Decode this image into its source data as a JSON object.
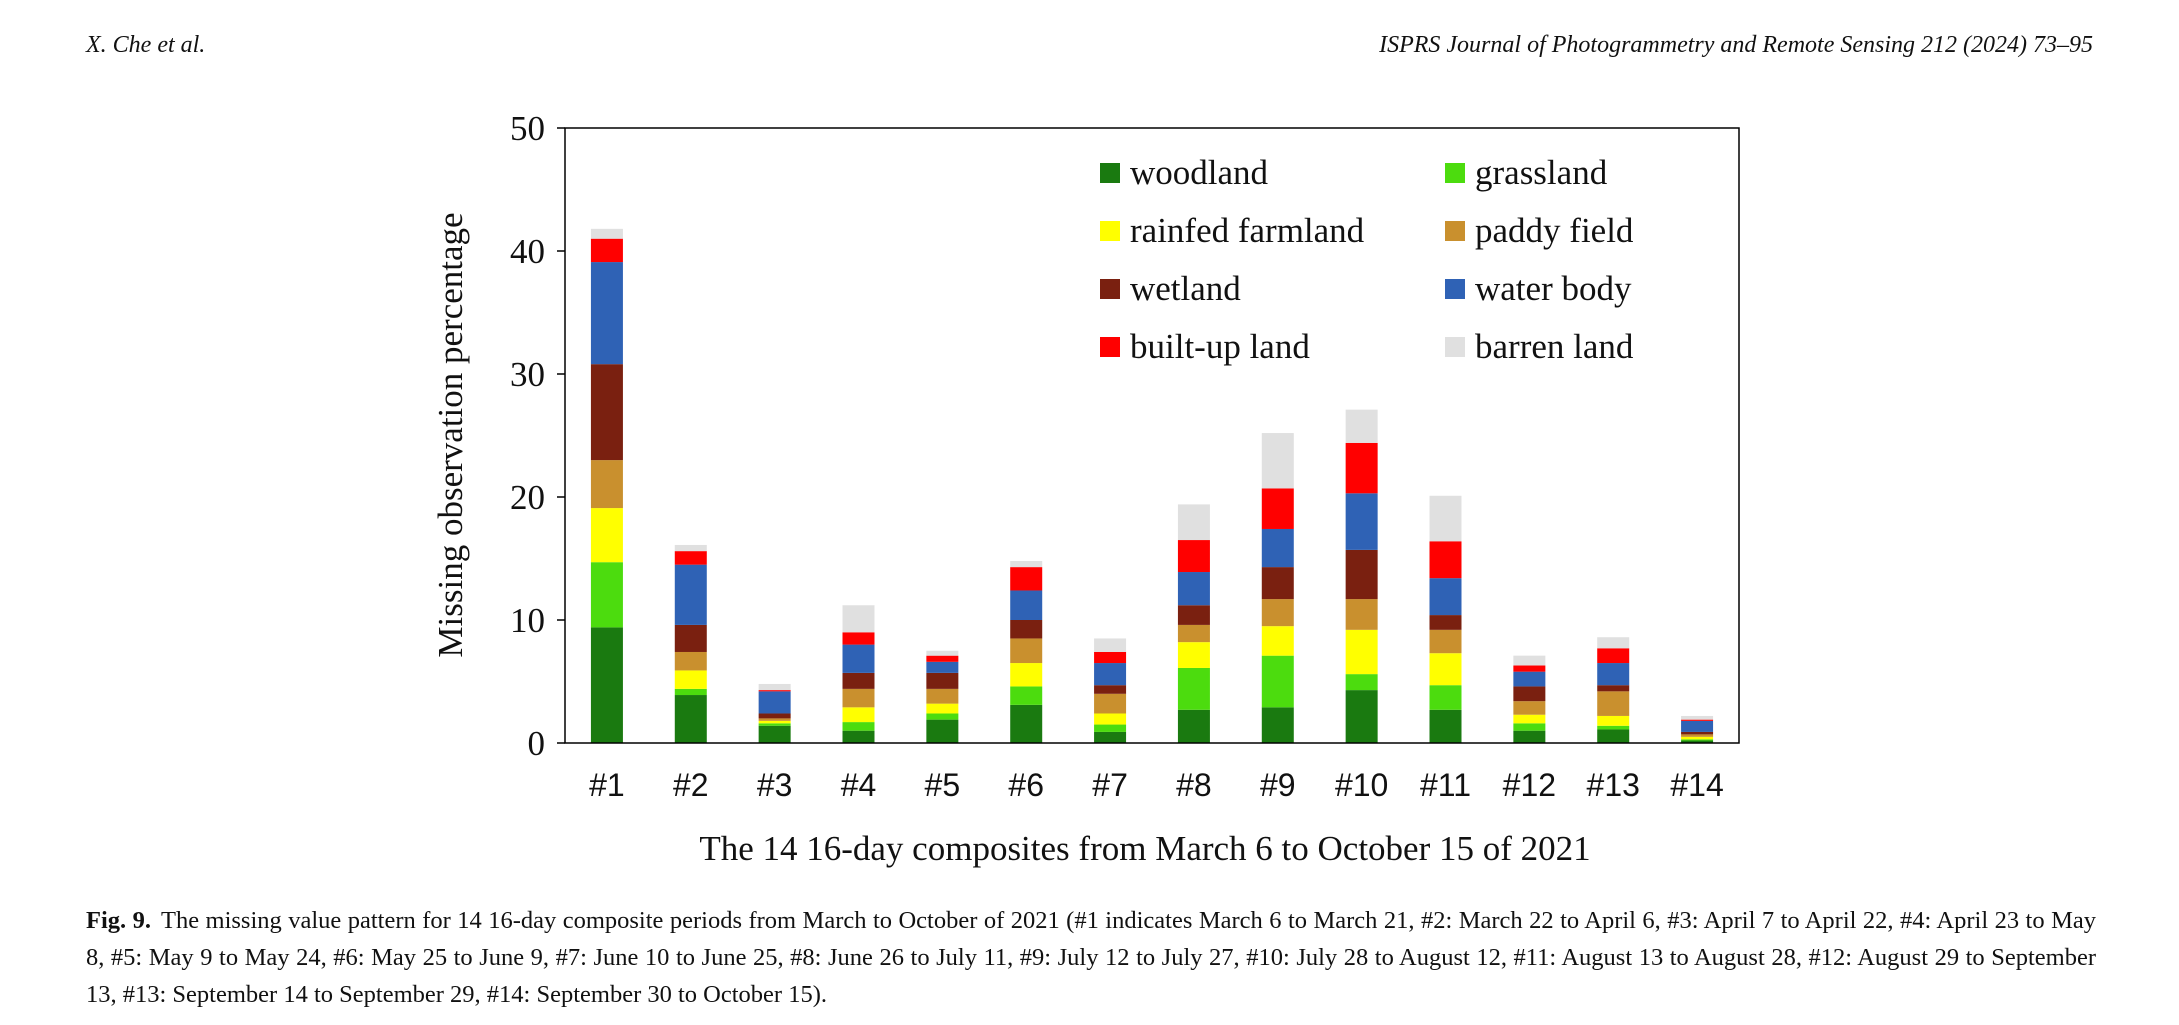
{
  "header": {
    "left": "X. Che et al.",
    "right": "ISPRS Journal of Photogrammetry and Remote Sensing 212 (2024) 73–95"
  },
  "caption": {
    "label": "Fig. 9.",
    "text": "The missing value pattern for 14 16-day composite periods from March to October of 2021 (#1 indicates March 6 to March 21, #2: March 22 to April 6, #3: April 7 to April 22, #4: April 23 to May 8, #5: May 9 to May 24, #6: May 25 to June 9, #7: June 10 to June 25, #8: June 26 to July 11, #9: July 12 to July 27, #10: July 28 to August 12, #11: August 13 to August 28, #12: August 29 to September 13, #13: September 14 to September 29, #14: September 30 to October 15)."
  },
  "chart_data": {
    "type": "bar",
    "stacked": true,
    "title": "",
    "xlabel": "The 14 16-day composites from March 6 to October 15 of 2021",
    "ylabel": "Missing observation percentage",
    "ylim": [
      0,
      50
    ],
    "yticks": [
      0,
      10,
      20,
      30,
      40,
      50
    ],
    "grid": false,
    "legend_position": "top-right",
    "categories": [
      "#1",
      "#2",
      "#3",
      "#4",
      "#5",
      "#6",
      "#7",
      "#8",
      "#9",
      "#10",
      "#11",
      "#12",
      "#13",
      "#14"
    ],
    "series": [
      {
        "name": "woodland",
        "color": "#1a7a10",
        "values": [
          9.4,
          3.9,
          1.4,
          1.0,
          1.9,
          3.1,
          0.9,
          2.7,
          2.9,
          4.3,
          2.7,
          1.0,
          1.1,
          0.2
        ]
      },
      {
        "name": "grassland",
        "color": "#4cdc0e",
        "values": [
          5.3,
          0.5,
          0.2,
          0.7,
          0.5,
          1.5,
          0.6,
          3.4,
          4.2,
          1.3,
          2.0,
          0.6,
          0.3,
          0.1
        ]
      },
      {
        "name": "rainfed farmland",
        "color": "#ffff00",
        "values": [
          4.4,
          1.5,
          0.2,
          1.2,
          0.8,
          1.9,
          0.9,
          2.1,
          2.4,
          3.6,
          2.6,
          0.7,
          0.8,
          0.2
        ]
      },
      {
        "name": "paddy field",
        "color": "#c9902e",
        "values": [
          3.9,
          1.5,
          0.2,
          1.5,
          1.2,
          2.0,
          1.6,
          1.4,
          2.2,
          2.5,
          1.9,
          1.1,
          2.0,
          0.2
        ]
      },
      {
        "name": "wetland",
        "color": "#7a2010",
        "values": [
          7.8,
          2.2,
          0.4,
          1.3,
          1.3,
          1.5,
          0.7,
          1.6,
          2.6,
          4.0,
          1.2,
          1.2,
          0.5,
          0.2
        ]
      },
      {
        "name": "water body",
        "color": "#2f62b5",
        "values": [
          8.3,
          4.9,
          1.8,
          2.3,
          0.9,
          2.4,
          1.8,
          2.7,
          3.1,
          4.6,
          3.0,
          1.2,
          1.8,
          0.9
        ]
      },
      {
        "name": "built-up land",
        "color": "#ff0000",
        "values": [
          1.9,
          1.1,
          0.1,
          1.0,
          0.5,
          1.9,
          0.9,
          2.6,
          3.3,
          4.1,
          3.0,
          0.5,
          1.2,
          0.1
        ]
      },
      {
        "name": "barren land",
        "color": "#e0e0e0",
        "values": [
          0.8,
          0.5,
          0.5,
          2.2,
          0.4,
          0.5,
          1.1,
          2.9,
          4.5,
          2.7,
          3.7,
          0.8,
          0.9,
          0.3
        ]
      }
    ]
  }
}
